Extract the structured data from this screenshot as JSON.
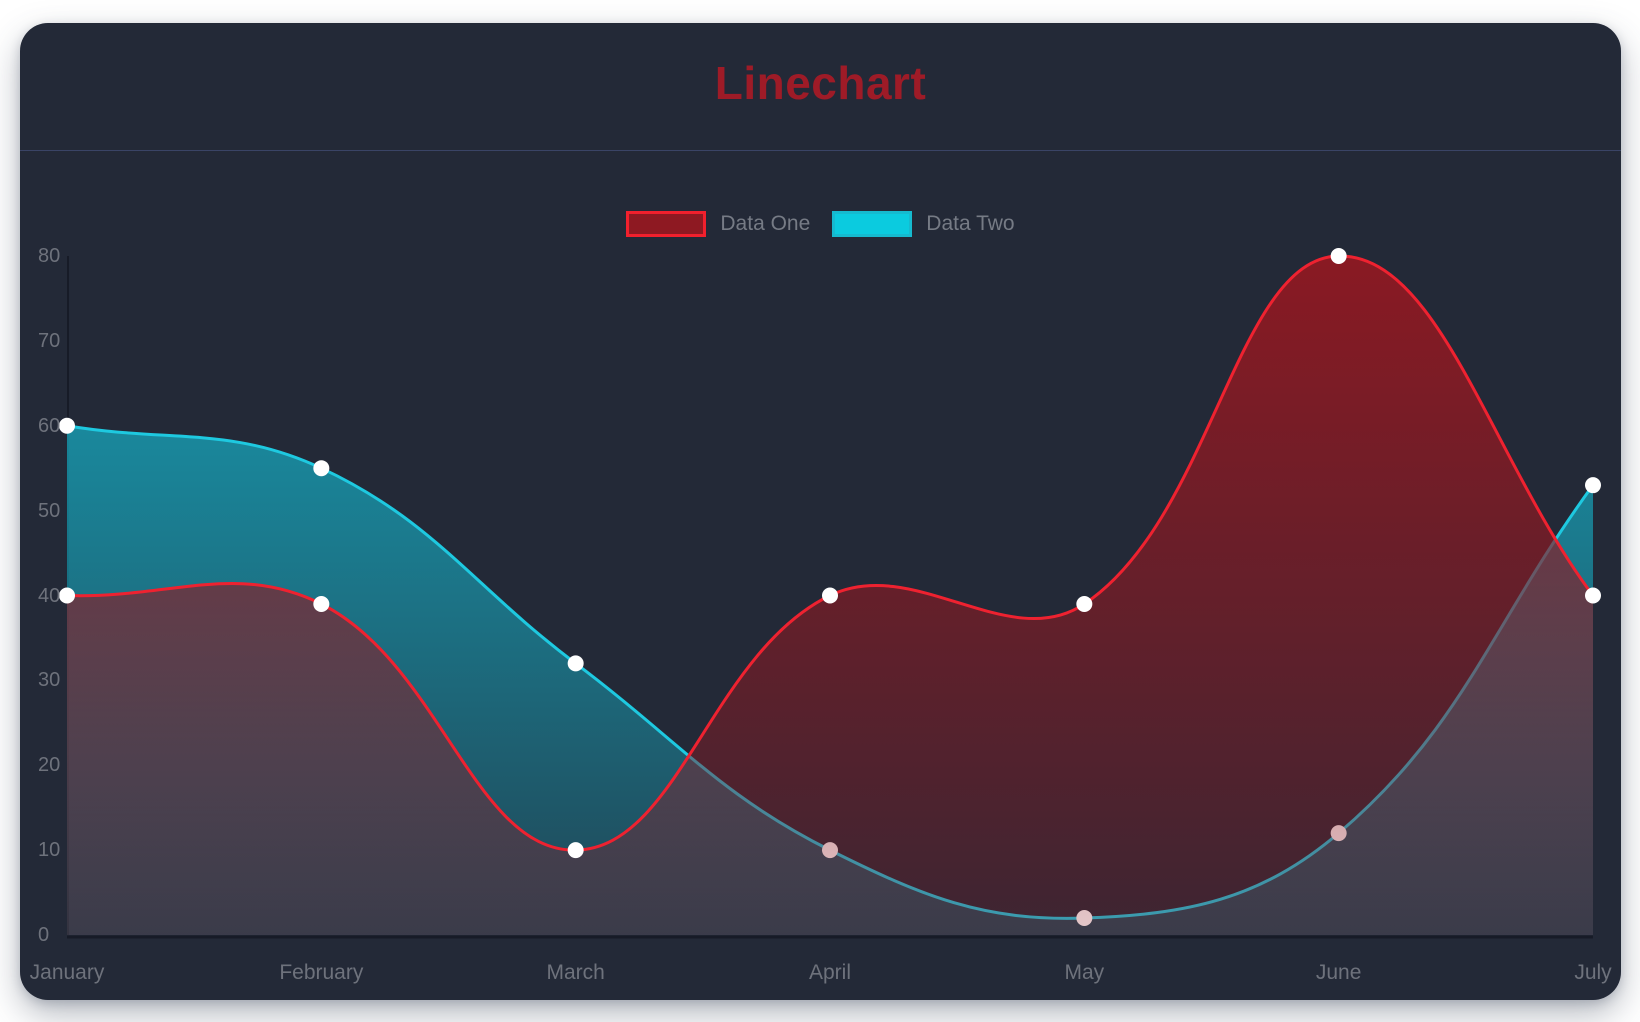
{
  "title": "Linechart",
  "chart_data": {
    "type": "line",
    "title": "Linechart",
    "categories": [
      "January",
      "February",
      "March",
      "April",
      "May",
      "June",
      "July"
    ],
    "series": [
      {
        "name": "Data One",
        "values": [
          40,
          39,
          10,
          40,
          39,
          80,
          40
        ],
        "line_color": "#ee2230",
        "fill_color": "#8e1922",
        "legend_swatch_fill": "#8e1922",
        "legend_swatch_border": "#f1202d"
      },
      {
        "name": "Data Two",
        "values": [
          60,
          55,
          32,
          10,
          2,
          12,
          53
        ],
        "line_color": "#1ec9e0",
        "fill_color": "#17a2b8",
        "legend_swatch_fill": "#0bcbdf",
        "legend_swatch_border": "#16bacf"
      }
    ],
    "ylim": [
      0,
      80
    ],
    "yticks": [
      0,
      10,
      20,
      30,
      40,
      50,
      60,
      70,
      80
    ],
    "xlabel": "",
    "ylabel": "",
    "grid": false,
    "legend_position": "top-center",
    "tension": 0.4,
    "point_color": "#ffffff",
    "point_radius": 8,
    "fill_opacity_top": 0.96,
    "fill_opacity_mid": 0.58,
    "fill_opacity_bottom": 0.24,
    "axis_line_color": "rgba(8,12,20,0.45)",
    "tick_label_color": "#6e727c"
  },
  "theme": {
    "page_background": "#ffffff",
    "card_background": "#232937",
    "divider_color": "#3a4466",
    "title_color": "#9e1b27",
    "legend_text_color": "#767b85"
  }
}
